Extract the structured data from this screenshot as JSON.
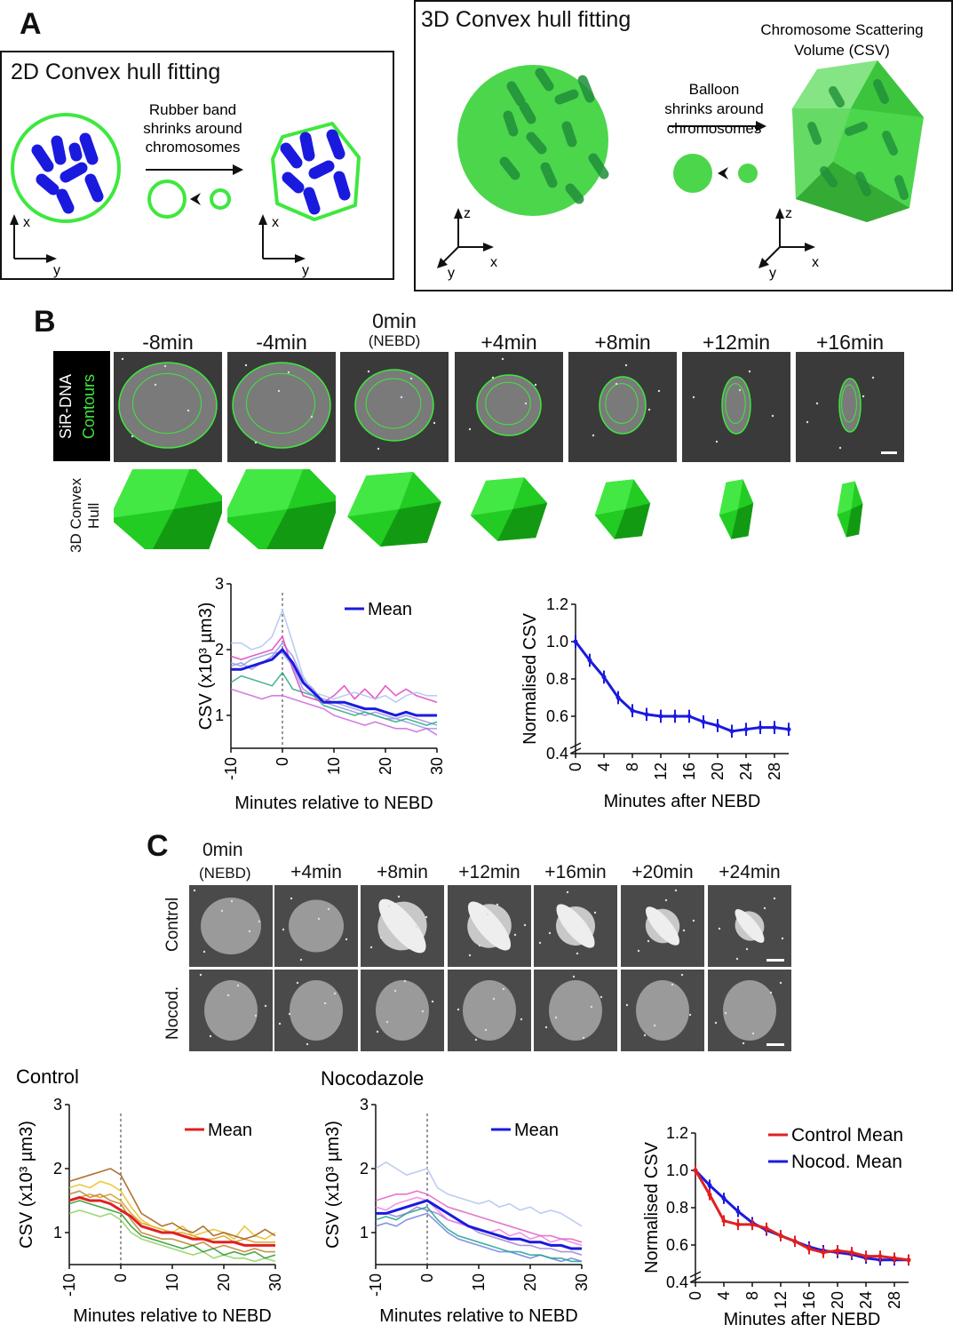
{
  "panelA": {
    "letter": "A",
    "box2d": {
      "title": "2D Convex hull fitting",
      "arrow_caption": [
        "Rubber band",
        "shrinks around",
        "chromosomes"
      ],
      "axis_x": "x",
      "axis_y": "y"
    },
    "box3d": {
      "title": "3D Convex hull fitting",
      "arrow_caption": [
        "Balloon",
        "shrinks around",
        "chromosomes"
      ],
      "result_caption": [
        "Chromosome Scattering",
        "Volume (CSV)"
      ],
      "axis_z": "z",
      "axis_x": "x",
      "axis_y": "y"
    },
    "colors": {
      "green": "#4cd64c",
      "bright_green": "#3ee83e",
      "blue": "#1a1adf",
      "dark_green": "#1f8f3a"
    }
  },
  "panelB": {
    "letter": "B",
    "timepoints": [
      "-8min",
      "-4min",
      "0min",
      "+4min",
      "+8min",
      "+12min",
      "+16min"
    ],
    "nebd_note": "(NEBD)",
    "row_label_1": "SiR-DNA",
    "row_label_2": "Contours",
    "hull_label": [
      "3D Convex",
      "Hull"
    ]
  },
  "panelC": {
    "letter": "C",
    "timepoints": [
      "0min",
      "+4min",
      "+8min",
      "+12min",
      "+16min",
      "+20min",
      "+24min"
    ],
    "nebd_note": "(NEBD)",
    "rows": [
      "Control",
      "Nocod."
    ]
  },
  "chart_data": [
    {
      "type": "line",
      "id": "B-left",
      "ylabel": "CSV (x10³ µm3)",
      "xlabel": "Minutes relative to NEBD",
      "xlim": [
        -10,
        30
      ],
      "ylim": [
        0.5,
        3
      ],
      "xticks": [
        "-10",
        "0",
        "10",
        "20",
        "30"
      ],
      "yticks": [
        "1",
        "2",
        "3"
      ],
      "legend": "Mean",
      "mean_color": "#1a1adf",
      "x": [
        -10,
        -8,
        -6,
        -4,
        -2,
        0,
        2,
        4,
        6,
        8,
        10,
        12,
        14,
        16,
        18,
        20,
        22,
        24,
        26,
        28,
        30
      ],
      "series": [
        {
          "name": "Mean",
          "values": [
            1.7,
            1.7,
            1.75,
            1.8,
            1.85,
            2.0,
            1.8,
            1.5,
            1.35,
            1.2,
            1.2,
            1.2,
            1.15,
            1.1,
            1.1,
            1.05,
            1.0,
            1.05,
            1.0,
            1.0,
            1.0
          ],
          "color": "#1a1adf"
        },
        {
          "values": [
            2.1,
            2.1,
            2.0,
            2.05,
            2.2,
            2.6,
            2.1,
            1.6,
            1.35,
            1.3,
            1.25,
            1.3,
            1.35,
            1.3,
            1.25,
            1.3,
            1.2,
            1.3,
            1.35,
            1.3,
            1.3
          ],
          "color": "#b0c4f0"
        },
        {
          "values": [
            1.9,
            1.85,
            1.9,
            1.95,
            2.0,
            2.2,
            1.7,
            1.3,
            1.25,
            1.2,
            1.3,
            1.45,
            1.25,
            1.4,
            1.25,
            1.45,
            1.3,
            1.4,
            1.3,
            1.25,
            1.2
          ],
          "color": "#e040c0"
        },
        {
          "values": [
            1.5,
            1.6,
            1.55,
            1.5,
            1.45,
            1.65,
            1.4,
            1.35,
            1.3,
            1.15,
            1.1,
            1.05,
            1.0,
            1.05,
            1.0,
            0.95,
            0.9,
            0.95,
            0.9,
            0.85,
            0.9
          ],
          "color": "#2aaa80"
        },
        {
          "values": [
            1.4,
            1.35,
            1.3,
            1.25,
            1.3,
            1.3,
            1.25,
            1.2,
            1.15,
            1.1,
            1.0,
            0.95,
            0.9,
            0.85,
            0.9,
            0.85,
            0.8,
            0.8,
            0.75,
            0.8,
            0.7
          ],
          "color": "#cc66dd"
        },
        {
          "values": [
            1.8,
            1.75,
            1.85,
            1.9,
            1.95,
            1.95,
            1.75,
            1.4,
            1.3,
            1.25,
            1.2,
            1.15,
            1.1,
            1.05,
            1.0,
            0.95,
            0.95,
            0.9,
            0.85,
            0.8,
            0.8
          ],
          "color": "#8fa0e0"
        },
        {
          "values": [
            1.75,
            1.8,
            1.7,
            1.8,
            1.9,
            2.1,
            1.9,
            1.55,
            1.4,
            1.2,
            1.15,
            1.1,
            1.05,
            1.0,
            1.05,
            1.0,
            0.95,
            1.0,
            0.95,
            0.9,
            0.85
          ],
          "color": "#a090e0"
        }
      ]
    },
    {
      "type": "line",
      "id": "B-right",
      "ylabel": "Normalised CSV",
      "xlabel": "Minutes after NEBD",
      "xlim": [
        0,
        30
      ],
      "ylim": [
        0.4,
        1.2
      ],
      "xticks": [
        "0",
        "4",
        "8",
        "12",
        "16",
        "20",
        "24",
        "28"
      ],
      "yticks": [
        "0.4",
        "0.6",
        "0.8",
        "1.0",
        "1.2"
      ],
      "x": [
        0,
        2,
        4,
        6,
        8,
        10,
        12,
        14,
        16,
        18,
        20,
        22,
        24,
        26,
        28,
        30
      ],
      "series": [
        {
          "values": [
            1.0,
            0.9,
            0.81,
            0.7,
            0.63,
            0.61,
            0.6,
            0.6,
            0.6,
            0.57,
            0.55,
            0.52,
            0.53,
            0.54,
            0.54,
            0.53
          ],
          "color": "#1a1adf"
        }
      ],
      "error": 0.035
    },
    {
      "type": "line",
      "id": "C-control",
      "title": "Control",
      "ylabel": "CSV (x10³ µm3)",
      "xlabel": "Minutes relative to NEBD",
      "xlim": [
        -10,
        30
      ],
      "ylim": [
        0.5,
        3
      ],
      "xticks": [
        "-10",
        "0",
        "10",
        "20",
        "30"
      ],
      "yticks": [
        "1",
        "2",
        "3"
      ],
      "legend": "Mean",
      "x": [
        -10,
        -8,
        -6,
        -4,
        -2,
        0,
        2,
        4,
        6,
        8,
        10,
        12,
        14,
        16,
        18,
        20,
        22,
        24,
        26,
        28,
        30
      ],
      "series": [
        {
          "name": "Mean",
          "values": [
            1.5,
            1.55,
            1.5,
            1.5,
            1.45,
            1.35,
            1.25,
            1.1,
            1.05,
            1.0,
            1.0,
            0.95,
            0.9,
            0.9,
            0.85,
            0.85,
            0.85,
            0.8,
            0.8,
            0.8,
            0.8
          ],
          "color": "#e02020"
        },
        {
          "values": [
            1.8,
            1.85,
            1.9,
            1.95,
            2.0,
            1.9,
            1.6,
            1.3,
            1.2,
            1.1,
            1.15,
            1.05,
            1.0,
            1.1,
            0.95,
            1.0,
            0.95,
            0.9,
            0.95,
            1.05,
            0.95
          ],
          "color": "#a05a10"
        },
        {
          "values": [
            1.7,
            1.75,
            1.7,
            1.8,
            1.75,
            1.65,
            1.4,
            1.2,
            1.1,
            1.05,
            1.0,
            1.1,
            0.95,
            1.0,
            1.05,
            1.0,
            0.9,
            1.1,
            0.95,
            0.9,
            1.0
          ],
          "color": "#e6c020"
        },
        {
          "values": [
            1.45,
            1.5,
            1.45,
            1.4,
            1.35,
            1.3,
            1.1,
            0.95,
            0.9,
            0.85,
            0.8,
            0.75,
            0.8,
            0.7,
            0.75,
            0.65,
            0.7,
            0.65,
            0.7,
            0.6,
            0.65
          ],
          "color": "#2a9a2a"
        },
        {
          "values": [
            1.6,
            1.65,
            1.55,
            1.6,
            1.5,
            1.45,
            1.2,
            1.0,
            0.95,
            0.9,
            0.9,
            0.85,
            0.8,
            0.85,
            0.75,
            0.8,
            0.75,
            0.7,
            0.75,
            0.7,
            0.7
          ],
          "color": "#c08030"
        },
        {
          "values": [
            1.3,
            1.35,
            1.3,
            1.25,
            1.3,
            1.2,
            1.0,
            0.9,
            0.85,
            0.8,
            0.75,
            0.7,
            0.65,
            0.7,
            0.6,
            0.65,
            0.6,
            0.6,
            0.55,
            0.6,
            0.55
          ],
          "color": "#90d060"
        },
        {
          "values": [
            1.5,
            1.55,
            1.6,
            1.55,
            1.6,
            1.5,
            1.3,
            1.15,
            1.1,
            1.05,
            1.0,
            1.0,
            0.95,
            0.9,
            0.9,
            0.95,
            0.85,
            0.9,
            0.85,
            0.85,
            0.85
          ],
          "color": "#d4a020"
        }
      ]
    },
    {
      "type": "line",
      "id": "C-nocodazole",
      "title": "Nocodazole",
      "ylabel": "CSV (x10³ µm3)",
      "xlabel": "Minutes relative to NEBD",
      "xlim": [
        -10,
        30
      ],
      "ylim": [
        0.5,
        3
      ],
      "xticks": [
        "-10",
        "0",
        "10",
        "20",
        "30"
      ],
      "yticks": [
        "1",
        "2",
        "3"
      ],
      "legend": "Mean",
      "x": [
        -10,
        -8,
        -6,
        -4,
        -2,
        0,
        2,
        4,
        6,
        8,
        10,
        12,
        14,
        16,
        18,
        20,
        22,
        24,
        26,
        28,
        30
      ],
      "series": [
        {
          "name": "Mean",
          "values": [
            1.3,
            1.3,
            1.35,
            1.4,
            1.45,
            1.5,
            1.4,
            1.3,
            1.2,
            1.1,
            1.05,
            1.0,
            0.95,
            0.9,
            0.9,
            0.85,
            0.85,
            0.8,
            0.8,
            0.75,
            0.75
          ],
          "color": "#1a1adf"
        },
        {
          "values": [
            2.0,
            2.1,
            2.0,
            1.9,
            1.95,
            2.0,
            1.7,
            1.6,
            1.55,
            1.5,
            1.45,
            1.5,
            1.4,
            1.45,
            1.35,
            1.4,
            1.3,
            1.35,
            1.3,
            1.2,
            1.1
          ],
          "color": "#b0c4f0"
        },
        {
          "values": [
            1.5,
            1.55,
            1.6,
            1.6,
            1.65,
            1.6,
            1.5,
            1.4,
            1.35,
            1.3,
            1.25,
            1.2,
            1.15,
            1.1,
            1.05,
            1.0,
            0.95,
            0.95,
            0.9,
            0.9,
            0.85
          ],
          "color": "#e060c0"
        },
        {
          "values": [
            1.2,
            1.25,
            1.2,
            1.3,
            1.35,
            1.4,
            1.2,
            1.05,
            0.95,
            0.9,
            0.85,
            0.8,
            0.75,
            0.7,
            0.7,
            0.65,
            0.65,
            0.6,
            0.6,
            0.55,
            0.55
          ],
          "color": "#20a090"
        },
        {
          "values": [
            1.4,
            1.35,
            1.45,
            1.5,
            1.55,
            1.5,
            1.35,
            1.2,
            1.15,
            1.1,
            1.05,
            1.0,
            1.05,
            0.95,
            1.0,
            0.9,
            0.95,
            0.85,
            0.9,
            0.85,
            0.8
          ],
          "color": "#f080e0"
        },
        {
          "values": [
            1.1,
            1.15,
            1.1,
            1.2,
            1.25,
            1.3,
            1.15,
            1.0,
            0.9,
            0.85,
            0.8,
            0.75,
            0.7,
            0.7,
            0.65,
            0.6,
            0.65,
            0.6,
            0.55,
            0.6,
            0.55
          ],
          "color": "#7080e0"
        },
        {
          "values": [
            1.3,
            1.3,
            1.25,
            1.3,
            1.4,
            1.35,
            1.3,
            1.2,
            1.15,
            1.1,
            1.0,
            0.95,
            0.9,
            0.85,
            0.8,
            0.8,
            0.75,
            0.75,
            0.7,
            0.7,
            0.65
          ],
          "color": "#a080d0"
        }
      ]
    },
    {
      "type": "line",
      "id": "C-right",
      "ylabel": "Normalised CSV",
      "xlabel": "Minutes after NEBD",
      "xlim": [
        0,
        30
      ],
      "ylim": [
        0.4,
        1.2
      ],
      "xticks": [
        "0",
        "4",
        "8",
        "12",
        "16",
        "20",
        "24",
        "28"
      ],
      "yticks": [
        "0.4",
        "0.6",
        "0.8",
        "1.0",
        "1.2"
      ],
      "x": [
        0,
        2,
        4,
        6,
        8,
        10,
        12,
        14,
        16,
        18,
        20,
        22,
        24,
        26,
        28,
        30
      ],
      "series": [
        {
          "name": "Control Mean",
          "values": [
            1.0,
            0.87,
            0.73,
            0.71,
            0.71,
            0.69,
            0.65,
            0.62,
            0.58,
            0.56,
            0.57,
            0.56,
            0.54,
            0.54,
            0.53,
            0.52
          ],
          "color": "#e02020"
        },
        {
          "name": "Nocod. Mean",
          "values": [
            1.0,
            0.92,
            0.85,
            0.78,
            0.72,
            0.68,
            0.65,
            0.62,
            0.59,
            0.57,
            0.56,
            0.55,
            0.53,
            0.52,
            0.52,
            0.52
          ],
          "color": "#1a1adf"
        }
      ],
      "error": 0.03
    }
  ]
}
